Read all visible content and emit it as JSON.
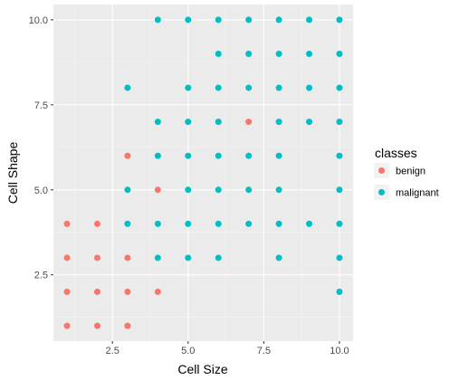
{
  "chart_data": {
    "type": "scatter",
    "xlabel": "Cell Size",
    "ylabel": "Cell Shape",
    "xlim": [
      0.55,
      10.45
    ],
    "ylim": [
      0.55,
      10.45
    ],
    "x_ticks": [
      2.5,
      5.0,
      7.5,
      10.0
    ],
    "x_tick_labels": [
      "2.5",
      "5.0",
      "7.5",
      "10.0"
    ],
    "y_ticks": [
      2.5,
      5.0,
      7.5,
      10.0
    ],
    "y_tick_labels": [
      "2.5",
      "5.0",
      "7.5",
      "10.0"
    ],
    "grid": true,
    "legend": {
      "title": "classes",
      "placement": "right",
      "entries": [
        "benign",
        "malignant"
      ]
    },
    "colors": {
      "panel": "#ebebeb",
      "grid_major": "#ffffff",
      "grid_minor": "#f5f5f5",
      "benign": "#F8766D",
      "malignant": "#00BFC4"
    },
    "series": [
      {
        "name": "benign",
        "points": [
          [
            1,
            1
          ],
          [
            2,
            1
          ],
          [
            3,
            1
          ],
          [
            1,
            2
          ],
          [
            2,
            2
          ],
          [
            3,
            2
          ],
          [
            4,
            2
          ],
          [
            1,
            3
          ],
          [
            2,
            3
          ],
          [
            3,
            3
          ],
          [
            1,
            4
          ],
          [
            2,
            4
          ],
          [
            4,
            5
          ],
          [
            3,
            6
          ],
          [
            7,
            7
          ]
        ]
      },
      {
        "name": "malignant",
        "points": [
          [
            4,
            10
          ],
          [
            5,
            10
          ],
          [
            6,
            10
          ],
          [
            7,
            10
          ],
          [
            8,
            10
          ],
          [
            9,
            10
          ],
          [
            10,
            10
          ],
          [
            6,
            9
          ],
          [
            7,
            9
          ],
          [
            8,
            9
          ],
          [
            9,
            9
          ],
          [
            10,
            9
          ],
          [
            3,
            8
          ],
          [
            5,
            8
          ],
          [
            6,
            8
          ],
          [
            7,
            8
          ],
          [
            8,
            8
          ],
          [
            9,
            8
          ],
          [
            10,
            8
          ],
          [
            4,
            7
          ],
          [
            5,
            7
          ],
          [
            6,
            7
          ],
          [
            8,
            7
          ],
          [
            9,
            7
          ],
          [
            10,
            7
          ],
          [
            4,
            6
          ],
          [
            5,
            6
          ],
          [
            6,
            6
          ],
          [
            7,
            6
          ],
          [
            8,
            6
          ],
          [
            10,
            6
          ],
          [
            3,
            5
          ],
          [
            5,
            5
          ],
          [
            6,
            5
          ],
          [
            7,
            5
          ],
          [
            8,
            5
          ],
          [
            10,
            5
          ],
          [
            3,
            4
          ],
          [
            4,
            4
          ],
          [
            5,
            4
          ],
          [
            6,
            4
          ],
          [
            7,
            4
          ],
          [
            8,
            4
          ],
          [
            9,
            4
          ],
          [
            10,
            4
          ],
          [
            4,
            3
          ],
          [
            5,
            3
          ],
          [
            6,
            3
          ],
          [
            8,
            3
          ],
          [
            10,
            3
          ],
          [
            10,
            2
          ]
        ]
      }
    ]
  }
}
